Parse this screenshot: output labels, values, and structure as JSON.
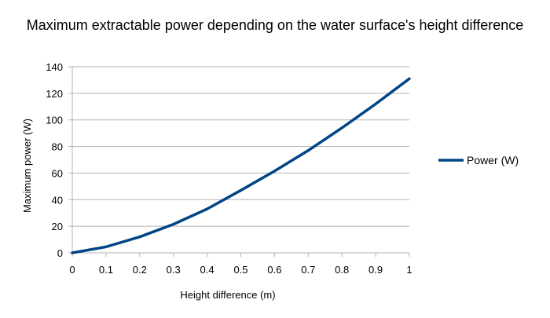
{
  "chart_data": {
    "type": "line",
    "title": "Maximum extractable power depending on the water surface's height difference",
    "xlabel": "Height difference (m)",
    "ylabel": "Maximum power (W)",
    "x": [
      0,
      0.1,
      0.2,
      0.3,
      0.4,
      0.5,
      0.6,
      0.7,
      0.8,
      0.9,
      1
    ],
    "x_tick_labels": [
      "0",
      "0.1",
      "0.2",
      "0.3",
      "0.4",
      "0.5",
      "0.6",
      "0.7",
      "0.8",
      "0.9",
      "1"
    ],
    "xlim": [
      0,
      1
    ],
    "ylim": [
      0,
      140
    ],
    "y_ticks": [
      0,
      20,
      40,
      60,
      80,
      100,
      120,
      140
    ],
    "y_tick_labels": [
      "0",
      "20",
      "40",
      "60",
      "80",
      "100",
      "120",
      "140"
    ],
    "grid": true,
    "legend_position": "right",
    "series": [
      {
        "name": "Power (W)",
        "color": "#004586",
        "values": [
          0,
          4.5,
          12,
          21.5,
          33,
          47,
          61.5,
          77,
          94,
          112,
          131
        ]
      }
    ]
  }
}
